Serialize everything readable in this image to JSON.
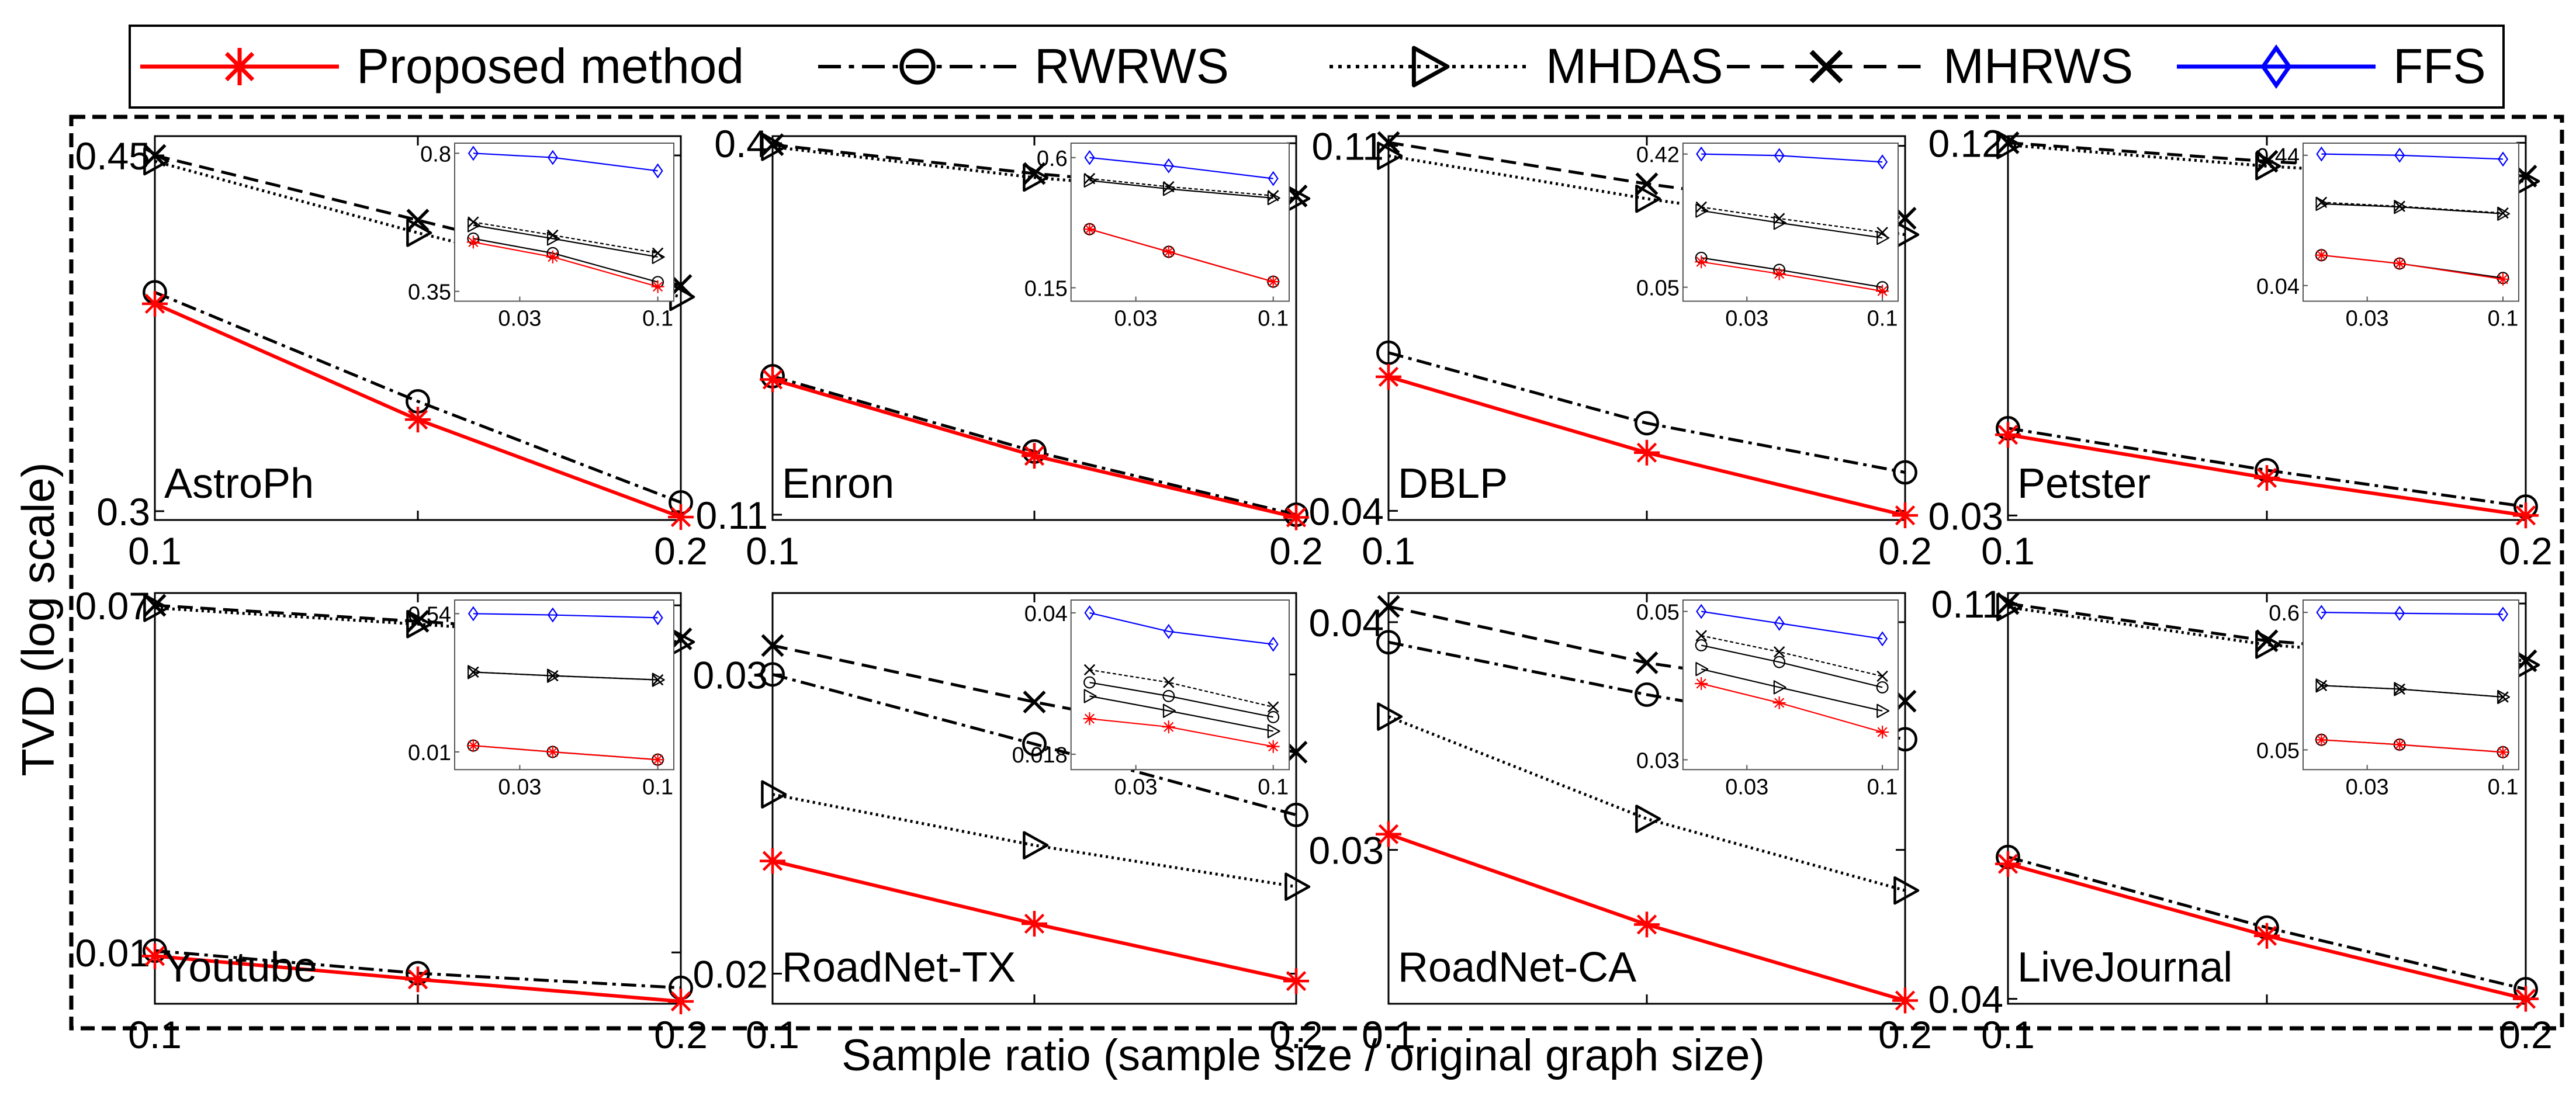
{
  "legend": [
    {
      "name": "Proposed method",
      "color": "#ff0000",
      "marker": "asterisk",
      "dash": "solid"
    },
    {
      "name": "RWRWS",
      "color": "#000000",
      "marker": "circle",
      "dash": "dashdot"
    },
    {
      "name": "MHDAS",
      "color": "#000000",
      "marker": "triangle-right",
      "dash": "dotted"
    },
    {
      "name": "MHRWS",
      "color": "#000000",
      "marker": "x",
      "dash": "dashed"
    },
    {
      "name": "FFS",
      "color": "#0000ff",
      "marker": "diamond",
      "dash": "solid"
    }
  ],
  "ylabel": "TVD (log scale)",
  "xlabel": "Sample ratio (sample size / original graph size)",
  "chart_data": [
    {
      "type": "line",
      "title": "AstroPh",
      "x": [
        0.1,
        0.15,
        0.2
      ],
      "xlim": [
        0.1,
        0.2
      ],
      "ylim": [
        0.297,
        0.46
      ],
      "yscale": "log",
      "xticks": [
        "0.1",
        "0.2"
      ],
      "yticks": [
        {
          "v": 0.45,
          "label": "0.45"
        },
        {
          "v": 0.3,
          "label": "0.3"
        }
      ],
      "series": [
        {
          "name": "Proposed method",
          "values": [
            0.38,
            0.333,
            0.298
          ]
        },
        {
          "name": "RWRWS",
          "values": [
            0.385,
            0.34,
            0.303
          ]
        },
        {
          "name": "MHDAS",
          "values": [
            0.447,
            0.412,
            0.383
          ]
        },
        {
          "name": "MHRWS",
          "values": [
            0.45,
            0.418,
            0.388
          ]
        }
      ],
      "inset": {
        "x": [
          0.02,
          0.04,
          0.1
        ],
        "xticks": [
          "0.03",
          "0.1"
        ],
        "yticks": [
          {
            "v": 0.8,
            "label": "0.8"
          },
          {
            "v": 0.35,
            "label": "0.35"
          }
        ],
        "ylim": [
          0.33,
          0.85
        ],
        "series": [
          {
            "name": "Proposed method",
            "values": [
              0.47,
              0.43,
              0.36
            ]
          },
          {
            "name": "RWRWS",
            "values": [
              0.48,
              0.44,
              0.37
            ]
          },
          {
            "name": "MHDAS",
            "values": [
              0.52,
              0.48,
              0.43
            ]
          },
          {
            "name": "MHRWS",
            "values": [
              0.53,
              0.49,
              0.44
            ]
          },
          {
            "name": "FFS",
            "values": [
              0.8,
              0.78,
              0.72
            ]
          }
        ]
      }
    },
    {
      "type": "line",
      "title": "Enron",
      "x": [
        0.1,
        0.15,
        0.2
      ],
      "xlim": [
        0.1,
        0.2
      ],
      "ylim": [
        0.108,
        0.41
      ],
      "yscale": "log",
      "xticks": [
        "0.1",
        "0.2"
      ],
      "yticks": [
        {
          "v": 0.4,
          "label": "0.4"
        },
        {
          "v": 0.11,
          "label": "0.11"
        }
      ],
      "series": [
        {
          "name": "Proposed method",
          "values": [
            0.176,
            0.135,
            0.109
          ]
        },
        {
          "name": "RWRWS",
          "values": [
            0.178,
            0.137,
            0.11
          ]
        },
        {
          "name": "MHDAS",
          "values": [
            0.395,
            0.355,
            0.33
          ]
        },
        {
          "name": "MHRWS",
          "values": [
            0.398,
            0.36,
            0.333
          ]
        }
      ],
      "inset": {
        "x": [
          0.02,
          0.04,
          0.1
        ],
        "xticks": [
          "0.03",
          "0.1"
        ],
        "yticks": [
          {
            "v": 0.6,
            "label": "0.6"
          },
          {
            "v": 0.15,
            "label": "0.15"
          }
        ],
        "ylim": [
          0.13,
          0.7
        ],
        "series": [
          {
            "name": "Proposed method",
            "values": [
              0.28,
              0.22,
              0.16
            ]
          },
          {
            "name": "RWRWS",
            "values": [
              0.28,
              0.22,
              0.16
            ]
          },
          {
            "name": "MHDAS",
            "values": [
              0.47,
              0.43,
              0.39
            ]
          },
          {
            "name": "MHRWS",
            "values": [
              0.48,
              0.44,
              0.4
            ]
          },
          {
            "name": "FFS",
            "values": [
              0.6,
              0.55,
              0.48
            ]
          }
        ]
      }
    },
    {
      "type": "line",
      "title": "DBLP",
      "x": [
        0.1,
        0.15,
        0.2
      ],
      "xlim": [
        0.1,
        0.2
      ],
      "ylim": [
        0.039,
        0.113
      ],
      "yscale": "log",
      "xticks": [
        "0.1",
        "0.2"
      ],
      "yticks": [
        {
          "v": 0.11,
          "label": "0.11"
        },
        {
          "v": 0.04,
          "label": "0.04"
        }
      ],
      "series": [
        {
          "name": "Proposed method",
          "values": [
            0.058,
            0.047,
            0.0395
          ]
        },
        {
          "name": "RWRWS",
          "values": [
            0.062,
            0.051,
            0.0445
          ]
        },
        {
          "name": "MHDAS",
          "values": [
            0.107,
            0.095,
            0.086
          ]
        },
        {
          "name": "MHRWS",
          "values": [
            0.111,
            0.099,
            0.09
          ]
        }
      ],
      "inset": {
        "x": [
          0.02,
          0.04,
          0.1
        ],
        "xticks": [
          "0.03",
          "0.1"
        ],
        "yticks": [
          {
            "v": 0.42,
            "label": "0.42"
          },
          {
            "v": 0.05,
            "label": "0.05"
          }
        ],
        "ylim": [
          0.04,
          0.5
        ],
        "series": [
          {
            "name": "Proposed method",
            "values": [
              0.075,
              0.062,
              0.047
            ]
          },
          {
            "name": "RWRWS",
            "values": [
              0.08,
              0.066,
              0.05
            ]
          },
          {
            "name": "MHDAS",
            "values": [
              0.17,
              0.14,
              0.11
            ]
          },
          {
            "name": "MHRWS",
            "values": [
              0.18,
              0.15,
              0.12
            ]
          },
          {
            "name": "FFS",
            "values": [
              0.42,
              0.41,
              0.37
            ]
          }
        ]
      }
    },
    {
      "type": "line",
      "title": "Petster",
      "x": [
        0.1,
        0.15,
        0.2
      ],
      "xlim": [
        0.1,
        0.2
      ],
      "ylim": [
        0.0295,
        0.123
      ],
      "yscale": "log",
      "xticks": [
        "0.1",
        "0.2"
      ],
      "yticks": [
        {
          "v": 0.12,
          "label": "0.12"
        },
        {
          "v": 0.03,
          "label": "0.03"
        }
      ],
      "series": [
        {
          "name": "Proposed method",
          "values": [
            0.0405,
            0.0345,
            0.03
          ]
        },
        {
          "name": "RWRWS",
          "values": [
            0.0415,
            0.0355,
            0.031
          ]
        },
        {
          "name": "MHDAS",
          "values": [
            0.119,
            0.11,
            0.104
          ]
        },
        {
          "name": "MHRWS",
          "values": [
            0.12,
            0.112,
            0.106
          ]
        }
      ],
      "inset": {
        "x": [
          0.02,
          0.04,
          0.1
        ],
        "xticks": [
          "0.03",
          "0.1"
        ],
        "yticks": [
          {
            "v": 0.44,
            "label": "0.44"
          },
          {
            "v": 0.04,
            "label": "0.04"
          }
        ],
        "ylim": [
          0.03,
          0.55
        ],
        "series": [
          {
            "name": "Proposed method",
            "values": [
              0.07,
              0.06,
              0.045
            ]
          },
          {
            "name": "RWRWS",
            "values": [
              0.07,
              0.06,
              0.046
            ]
          },
          {
            "name": "MHDAS",
            "values": [
              0.18,
              0.17,
              0.15
            ]
          },
          {
            "name": "MHRWS",
            "values": [
              0.185,
              0.172,
              0.152
            ]
          },
          {
            "name": "FFS",
            "values": [
              0.45,
              0.44,
              0.41
            ]
          }
        ]
      }
    },
    {
      "type": "line",
      "title": "Youtube",
      "x": [
        0.1,
        0.15,
        0.2
      ],
      "xlim": [
        0.1,
        0.2
      ],
      "ylim": [
        0.0075,
        0.075
      ],
      "yscale": "log",
      "xticks": [
        "0.1",
        "0.2"
      ],
      "yticks": [
        {
          "v": 0.07,
          "label": "0.07"
        },
        {
          "v": 0.01,
          "label": "0.01"
        }
      ],
      "series": [
        {
          "name": "Proposed method",
          "values": [
            0.0098,
            0.0086,
            0.0076
          ]
        },
        {
          "name": "RWRWS",
          "values": [
            0.0101,
            0.0089,
            0.0082
          ]
        },
        {
          "name": "MHDAS",
          "values": [
            0.069,
            0.063,
            0.057
          ]
        },
        {
          "name": "MHRWS",
          "values": [
            0.07,
            0.064,
            0.058
          ]
        }
      ],
      "inset": {
        "x": [
          0.02,
          0.04,
          0.1
        ],
        "xticks": [
          "0.03",
          "0.1"
        ],
        "yticks": [
          {
            "v": 0.54,
            "label": "0.54"
          },
          {
            "v": 0.01,
            "label": "0.01"
          }
        ],
        "ylim": [
          0.006,
          0.8
        ],
        "series": [
          {
            "name": "Proposed method",
            "values": [
              0.012,
              0.01,
              0.008
            ]
          },
          {
            "name": "RWRWS",
            "values": [
              0.012,
              0.01,
              0.008
            ]
          },
          {
            "name": "MHDAS",
            "values": [
              0.1,
              0.09,
              0.08
            ]
          },
          {
            "name": "MHRWS",
            "values": [
              0.1,
              0.09,
              0.08
            ]
          },
          {
            "name": "FFS",
            "values": [
              0.54,
              0.52,
              0.48
            ]
          }
        ]
      }
    },
    {
      "type": "line",
      "title": "RoadNet-TX",
      "x": [
        0.1,
        0.15,
        0.2
      ],
      "xlim": [
        0.1,
        0.2
      ],
      "ylim": [
        0.0192,
        0.0335
      ],
      "yscale": "log",
      "xticks": [
        "0.1",
        "0.2"
      ],
      "yticks": [
        {
          "v": 0.03,
          "label": "0.03"
        },
        {
          "v": 0.02,
          "label": "0.02"
        }
      ],
      "series": [
        {
          "name": "Proposed method",
          "values": [
            0.0233,
            0.0214,
            0.0198
          ]
        },
        {
          "name": "RWRWS",
          "values": [
            0.03,
            0.0273,
            0.0248
          ]
        },
        {
          "name": "MHDAS",
          "values": [
            0.0255,
            0.0238,
            0.0225
          ]
        },
        {
          "name": "MHRWS",
          "values": [
            0.0312,
            0.0289,
            0.027
          ]
        }
      ],
      "inset": {
        "x": [
          0.02,
          0.04,
          0.1
        ],
        "xticks": [
          "0.03",
          "0.1"
        ],
        "yticks": [
          {
            "v": 0.04,
            "label": "0.04"
          },
          {
            "v": 0.018,
            "label": "0.018"
          }
        ],
        "ylim": [
          0.0165,
          0.043
        ],
        "series": [
          {
            "name": "Proposed method",
            "values": [
              0.022,
              0.021,
              0.0188
            ]
          },
          {
            "name": "RWRWS",
            "values": [
              0.027,
              0.025,
              0.0222
            ]
          },
          {
            "name": "MHDAS",
            "values": [
              0.025,
              0.023,
              0.0205
            ]
          },
          {
            "name": "MHRWS",
            "values": [
              0.029,
              0.027,
              0.0235
            ]
          },
          {
            "name": "FFS",
            "values": [
              0.04,
              0.036,
              0.0335
            ]
          }
        ]
      }
    },
    {
      "type": "line",
      "title": "RoadNet-CA",
      "x": [
        0.1,
        0.15,
        0.2
      ],
      "xlim": [
        0.1,
        0.2
      ],
      "ylim": [
        0.0247,
        0.0415
      ],
      "yscale": "log",
      "xticks": [
        "0.1",
        "0.2"
      ],
      "yticks": [
        {
          "v": 0.04,
          "label": "0.04"
        },
        {
          "v": 0.03,
          "label": "0.03"
        }
      ],
      "series": [
        {
          "name": "Proposed method",
          "values": [
            0.0306,
            0.0273,
            0.0248
          ]
        },
        {
          "name": "RWRWS",
          "values": [
            0.039,
            0.0365,
            0.0345
          ]
        },
        {
          "name": "MHDAS",
          "values": [
            0.0355,
            0.0312,
            0.0285
          ]
        },
        {
          "name": "MHRWS",
          "values": [
            0.0408,
            0.038,
            0.0362
          ]
        }
      ],
      "inset": {
        "x": [
          0.02,
          0.04,
          0.1
        ],
        "xticks": [
          "0.03",
          "0.1"
        ],
        "yticks": [
          {
            "v": 0.05,
            "label": "0.05"
          },
          {
            "v": 0.03,
            "label": "0.03"
          }
        ],
        "ylim": [
          0.029,
          0.052
        ],
        "series": [
          {
            "name": "Proposed method",
            "values": [
              0.039,
              0.0365,
              0.033
            ]
          },
          {
            "name": "RWRWS",
            "values": [
              0.0445,
              0.042,
              0.0385
            ]
          },
          {
            "name": "MHDAS",
            "values": [
              0.041,
              0.0385,
              0.0355
            ]
          },
          {
            "name": "MHRWS",
            "values": [
              0.046,
              0.0435,
              0.04
            ]
          },
          {
            "name": "FFS",
            "values": [
              0.05,
              0.048,
              0.0455
            ]
          }
        ]
      }
    },
    {
      "type": "line",
      "title": "LiveJournal",
      "x": [
        0.1,
        0.15,
        0.2
      ],
      "xlim": [
        0.1,
        0.2
      ],
      "ylim": [
        0.0395,
        0.113
      ],
      "yscale": "log",
      "xticks": [
        "0.1",
        "0.2"
      ],
      "yticks": [
        {
          "v": 0.11,
          "label": "0.11"
        },
        {
          "v": 0.04,
          "label": "0.04"
        }
      ],
      "series": [
        {
          "name": "Proposed method",
          "values": [
            0.0565,
            0.047,
            0.04
          ]
        },
        {
          "name": "RWRWS",
          "values": [
            0.0575,
            0.048,
            0.041
          ]
        },
        {
          "name": "MHDAS",
          "values": [
            0.109,
            0.099,
            0.094
          ]
        },
        {
          "name": "MHRWS",
          "values": [
            0.11,
            0.1,
            0.095
          ]
        }
      ],
      "inset": {
        "x": [
          0.02,
          0.04,
          0.1
        ],
        "xticks": [
          "0.03",
          "0.1"
        ],
        "yticks": [
          {
            "v": 0.6,
            "label": "0.6"
          },
          {
            "v": 0.05,
            "label": "0.05"
          }
        ],
        "ylim": [
          0.035,
          0.75
        ],
        "series": [
          {
            "name": "Proposed method",
            "values": [
              0.06,
              0.055,
              0.048
            ]
          },
          {
            "name": "RWRWS",
            "values": [
              0.06,
              0.055,
              0.048
            ]
          },
          {
            "name": "MHDAS",
            "values": [
              0.16,
              0.15,
              0.13
            ]
          },
          {
            "name": "MHRWS",
            "values": [
              0.16,
              0.15,
              0.13
            ]
          },
          {
            "name": "FFS",
            "values": [
              0.6,
              0.59,
              0.58
            ]
          }
        ]
      }
    }
  ]
}
